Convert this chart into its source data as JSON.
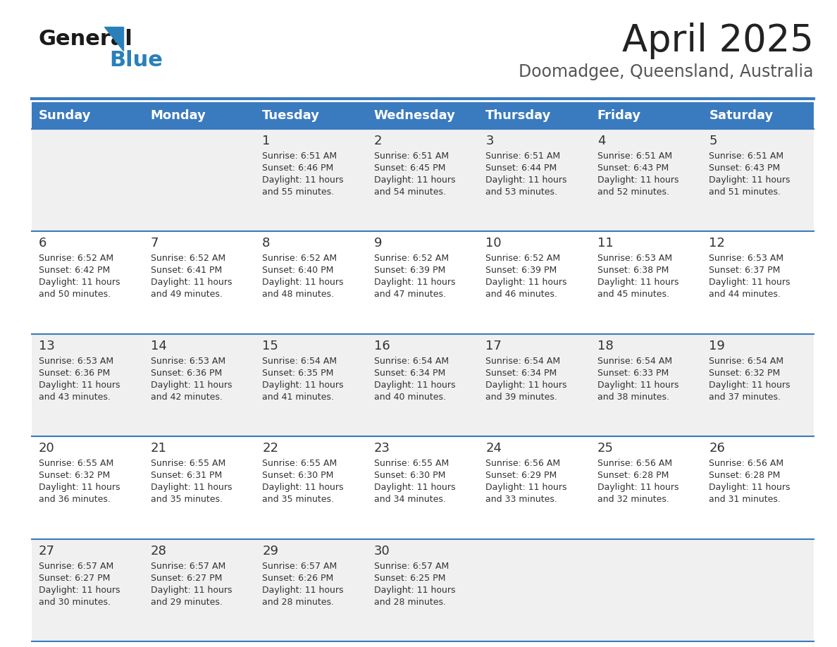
{
  "title": "April 2025",
  "subtitle": "Doomadgee, Queensland, Australia",
  "header_bg": "#3a7abf",
  "header_text_color": "#ffffff",
  "cell_bg_odd": "#f0f0f0",
  "cell_bg_even": "#ffffff",
  "text_color": "#333333",
  "border_color": "#3a7abf",
  "days_of_week": [
    "Sunday",
    "Monday",
    "Tuesday",
    "Wednesday",
    "Thursday",
    "Friday",
    "Saturday"
  ],
  "weeks": [
    [
      {
        "day": "",
        "sunrise": "",
        "sunset": "",
        "daylight": ""
      },
      {
        "day": "",
        "sunrise": "",
        "sunset": "",
        "daylight": ""
      },
      {
        "day": "1",
        "sunrise": "6:51 AM",
        "sunset": "6:46 PM",
        "daylight": "11 hours\nand 55 minutes."
      },
      {
        "day": "2",
        "sunrise": "6:51 AM",
        "sunset": "6:45 PM",
        "daylight": "11 hours\nand 54 minutes."
      },
      {
        "day": "3",
        "sunrise": "6:51 AM",
        "sunset": "6:44 PM",
        "daylight": "11 hours\nand 53 minutes."
      },
      {
        "day": "4",
        "sunrise": "6:51 AM",
        "sunset": "6:43 PM",
        "daylight": "11 hours\nand 52 minutes."
      },
      {
        "day": "5",
        "sunrise": "6:51 AM",
        "sunset": "6:43 PM",
        "daylight": "11 hours\nand 51 minutes."
      }
    ],
    [
      {
        "day": "6",
        "sunrise": "6:52 AM",
        "sunset": "6:42 PM",
        "daylight": "11 hours\nand 50 minutes."
      },
      {
        "day": "7",
        "sunrise": "6:52 AM",
        "sunset": "6:41 PM",
        "daylight": "11 hours\nand 49 minutes."
      },
      {
        "day": "8",
        "sunrise": "6:52 AM",
        "sunset": "6:40 PM",
        "daylight": "11 hours\nand 48 minutes."
      },
      {
        "day": "9",
        "sunrise": "6:52 AM",
        "sunset": "6:39 PM",
        "daylight": "11 hours\nand 47 minutes."
      },
      {
        "day": "10",
        "sunrise": "6:52 AM",
        "sunset": "6:39 PM",
        "daylight": "11 hours\nand 46 minutes."
      },
      {
        "day": "11",
        "sunrise": "6:53 AM",
        "sunset": "6:38 PM",
        "daylight": "11 hours\nand 45 minutes."
      },
      {
        "day": "12",
        "sunrise": "6:53 AM",
        "sunset": "6:37 PM",
        "daylight": "11 hours\nand 44 minutes."
      }
    ],
    [
      {
        "day": "13",
        "sunrise": "6:53 AM",
        "sunset": "6:36 PM",
        "daylight": "11 hours\nand 43 minutes."
      },
      {
        "day": "14",
        "sunrise": "6:53 AM",
        "sunset": "6:36 PM",
        "daylight": "11 hours\nand 42 minutes."
      },
      {
        "day": "15",
        "sunrise": "6:54 AM",
        "sunset": "6:35 PM",
        "daylight": "11 hours\nand 41 minutes."
      },
      {
        "day": "16",
        "sunrise": "6:54 AM",
        "sunset": "6:34 PM",
        "daylight": "11 hours\nand 40 minutes."
      },
      {
        "day": "17",
        "sunrise": "6:54 AM",
        "sunset": "6:34 PM",
        "daylight": "11 hours\nand 39 minutes."
      },
      {
        "day": "18",
        "sunrise": "6:54 AM",
        "sunset": "6:33 PM",
        "daylight": "11 hours\nand 38 minutes."
      },
      {
        "day": "19",
        "sunrise": "6:54 AM",
        "sunset": "6:32 PM",
        "daylight": "11 hours\nand 37 minutes."
      }
    ],
    [
      {
        "day": "20",
        "sunrise": "6:55 AM",
        "sunset": "6:32 PM",
        "daylight": "11 hours\nand 36 minutes."
      },
      {
        "day": "21",
        "sunrise": "6:55 AM",
        "sunset": "6:31 PM",
        "daylight": "11 hours\nand 35 minutes."
      },
      {
        "day": "22",
        "sunrise": "6:55 AM",
        "sunset": "6:30 PM",
        "daylight": "11 hours\nand 35 minutes."
      },
      {
        "day": "23",
        "sunrise": "6:55 AM",
        "sunset": "6:30 PM",
        "daylight": "11 hours\nand 34 minutes."
      },
      {
        "day": "24",
        "sunrise": "6:56 AM",
        "sunset": "6:29 PM",
        "daylight": "11 hours\nand 33 minutes."
      },
      {
        "day": "25",
        "sunrise": "6:56 AM",
        "sunset": "6:28 PM",
        "daylight": "11 hours\nand 32 minutes."
      },
      {
        "day": "26",
        "sunrise": "6:56 AM",
        "sunset": "6:28 PM",
        "daylight": "11 hours\nand 31 minutes."
      }
    ],
    [
      {
        "day": "27",
        "sunrise": "6:57 AM",
        "sunset": "6:27 PM",
        "daylight": "11 hours\nand 30 minutes."
      },
      {
        "day": "28",
        "sunrise": "6:57 AM",
        "sunset": "6:27 PM",
        "daylight": "11 hours\nand 29 minutes."
      },
      {
        "day": "29",
        "sunrise": "6:57 AM",
        "sunset": "6:26 PM",
        "daylight": "11 hours\nand 28 minutes."
      },
      {
        "day": "30",
        "sunrise": "6:57 AM",
        "sunset": "6:25 PM",
        "daylight": "11 hours\nand 28 minutes."
      },
      {
        "day": "",
        "sunrise": "",
        "sunset": "",
        "daylight": ""
      },
      {
        "day": "",
        "sunrise": "",
        "sunset": "",
        "daylight": ""
      },
      {
        "day": "",
        "sunrise": "",
        "sunset": "",
        "daylight": ""
      }
    ]
  ],
  "logo_color1": "#1a1a1a",
  "logo_color2": "#2980b9",
  "title_fontsize": 38,
  "subtitle_fontsize": 17,
  "header_fontsize": 13,
  "day_num_fontsize": 13,
  "cell_text_fontsize": 9
}
